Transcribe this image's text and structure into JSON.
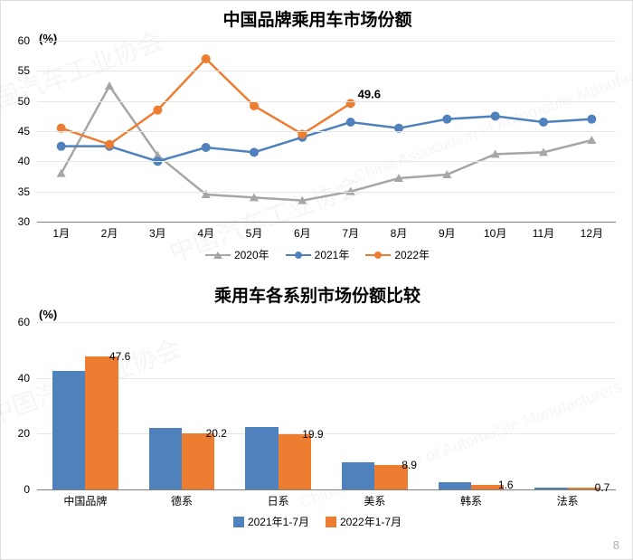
{
  "page_number": "8",
  "watermarks": [
    "中国汽车工业协会",
    "China Association of Automobile Manufacturers"
  ],
  "line_chart": {
    "type": "line",
    "title": "中国品牌乘用车市场份额",
    "title_fontsize": 19,
    "y_unit": "(%)",
    "categories": [
      "1月",
      "2月",
      "3月",
      "4月",
      "5月",
      "6月",
      "7月",
      "8月",
      "9月",
      "10月",
      "11月",
      "12月"
    ],
    "ylim": [
      30,
      60
    ],
    "ytick_step": 5,
    "yticks": [
      "30",
      "35",
      "40",
      "45",
      "50",
      "55",
      "60"
    ],
    "grid_color": "#e6e6e6",
    "axis_color": "#808080",
    "label_fontsize": 12,
    "last_point_label": "49.6",
    "series": [
      {
        "name": "2020年",
        "color": "#a6a6a6",
        "marker": "triangle",
        "values": [
          38.0,
          52.5,
          41.0,
          34.5,
          34.0,
          33.5,
          35.0,
          37.2,
          37.8,
          41.2,
          41.5,
          43.5
        ]
      },
      {
        "name": "2021年",
        "color": "#4f81bd",
        "marker": "circle",
        "values": [
          42.5,
          42.5,
          40.0,
          42.3,
          41.5,
          44.0,
          46.5,
          45.5,
          47.0,
          47.5,
          46.5,
          47.0
        ]
      },
      {
        "name": "2022年",
        "color": "#ed7d31",
        "marker": "circle",
        "values": [
          45.5,
          42.8,
          48.5,
          57.0,
          49.2,
          44.5,
          49.6
        ]
      }
    ]
  },
  "bar_chart": {
    "type": "bar",
    "title": "乘用车各系别市场份额比较",
    "title_fontsize": 19,
    "y_unit": "(%)",
    "categories": [
      "中国品牌",
      "德系",
      "日系",
      "美系",
      "韩系",
      "法系"
    ],
    "ylim": [
      0,
      60
    ],
    "ytick_step": 20,
    "yticks": [
      "0",
      "20",
      "40",
      "60"
    ],
    "grid_color": "#e6e6e6",
    "axis_color": "#808080",
    "label_fontsize": 12,
    "bar_width": 0.34,
    "value_labels": [
      "47.6",
      "20.2",
      "19.9",
      "8.9",
      "1.6",
      "0.7"
    ],
    "series": [
      {
        "name": "2021年1-7月",
        "color": "#4f81bd",
        "values": [
          42.5,
          22.2,
          22.5,
          9.8,
          2.6,
          0.5
        ]
      },
      {
        "name": "2022年1-7月",
        "color": "#ed7d31",
        "values": [
          47.6,
          20.2,
          19.9,
          8.9,
          1.6,
          0.7
        ]
      }
    ]
  }
}
